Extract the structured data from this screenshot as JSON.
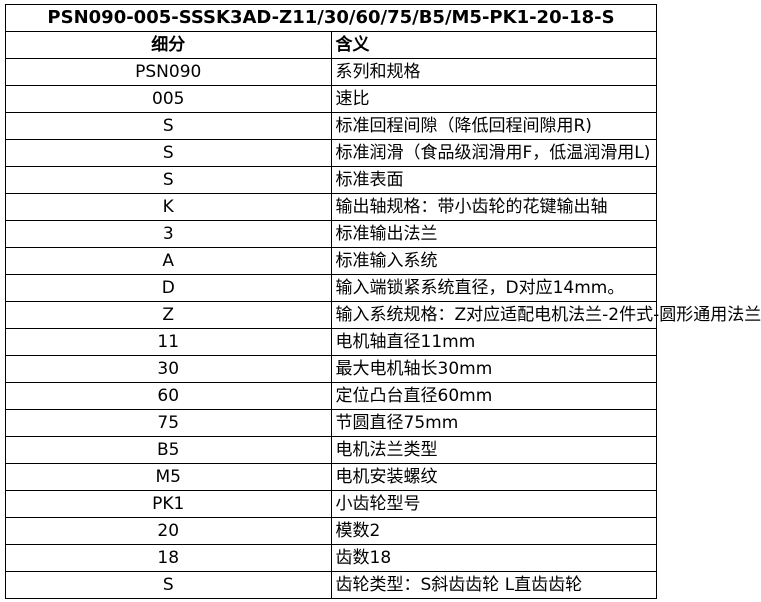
{
  "title": "PSN090-005-SSSK3AD-Z11/30/60/75/B5/M5-PK1-20-18-S",
  "headers": [
    "细分",
    "含义"
  ],
  "rows": [
    [
      "PSN090",
      "系列和规格"
    ],
    [
      "005",
      "速比"
    ],
    [
      "S",
      "标准回程间隙（降低回程间隙用R)"
    ],
    [
      "S",
      "标准润滑（食品级润滑用F，低温润滑用L)"
    ],
    [
      "S",
      "标准表面"
    ],
    [
      "K",
      "输出轴规格：带小齿轮的花键输出轴"
    ],
    [
      "3",
      "标准输出法兰"
    ],
    [
      "A",
      "标准输入系统"
    ],
    [
      "D",
      "输入端锁紧系统直径，D对应14mm。"
    ],
    [
      "Z",
      "输入系统规格：Z对应适配电机法兰-2件式-圆形通用法兰"
    ],
    [
      "11",
      "电机轴直径11mm"
    ],
    [
      "30",
      "最大电机轴长30mm"
    ],
    [
      "60",
      "定位凸台直径60mm"
    ],
    [
      "75",
      "节圆直径75mm"
    ],
    [
      "B5",
      "电机法兰类型"
    ],
    [
      "M5",
      "电机安装螺纹"
    ],
    [
      "PK1",
      "小齿轮型号"
    ],
    [
      "20",
      "模数2"
    ],
    [
      "18",
      "齿数18"
    ],
    [
      "S",
      "齿轮类型：S斜齿齿轮 L直齿齿轮"
    ]
  ]
}
